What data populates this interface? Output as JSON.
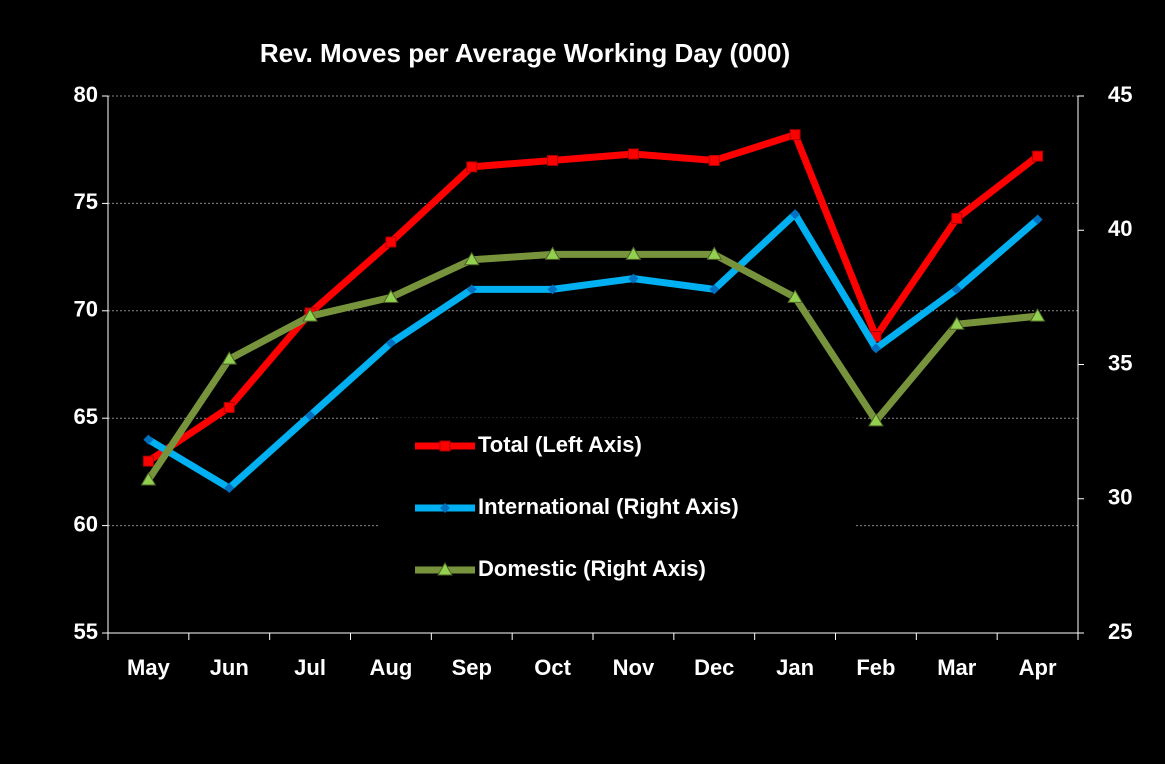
{
  "chart_data": {
    "type": "line",
    "title": "Rev. Moves per Average Working Day (000)",
    "categories": [
      "May",
      "Jun",
      "Jul",
      "Aug",
      "Sep",
      "Oct",
      "Nov",
      "Dec",
      "Jan",
      "Feb",
      "Mar",
      "Apr"
    ],
    "series": [
      {
        "name": "Total (Left Axis)",
        "color": "#ff0000",
        "marker": "square",
        "marker_color": "#ff0000",
        "values": [
          63.0,
          65.5,
          69.9,
          73.2,
          76.7,
          77.0,
          77.3,
          77.0,
          78.2,
          68.8,
          74.3,
          77.2
        ]
      },
      {
        "name": "International (Right Axis)",
        "color": "#00b0f0",
        "marker": "diamond",
        "marker_color": "#0070c0",
        "axis": "y2",
        "values": [
          32.2,
          30.4,
          33.1,
          35.8,
          37.8,
          37.8,
          38.2,
          37.8,
          40.6,
          35.6,
          37.8,
          40.4
        ]
      },
      {
        "name": "Domestic (Right Axis)",
        "color": "#77933c",
        "marker": "triangle",
        "marker_color": "#92d050",
        "axis": "y2",
        "values": [
          30.7,
          35.2,
          36.8,
          37.5,
          38.9,
          39.1,
          39.1,
          39.1,
          37.5,
          32.9,
          36.5,
          36.8
        ]
      }
    ],
    "ylim": [
      55,
      80
    ],
    "yticks": [
      55,
      60,
      65,
      70,
      75,
      80
    ],
    "y2lim": [
      25,
      45
    ],
    "y2ticks": [
      25,
      30,
      35,
      40,
      45
    ],
    "grid": true
  }
}
